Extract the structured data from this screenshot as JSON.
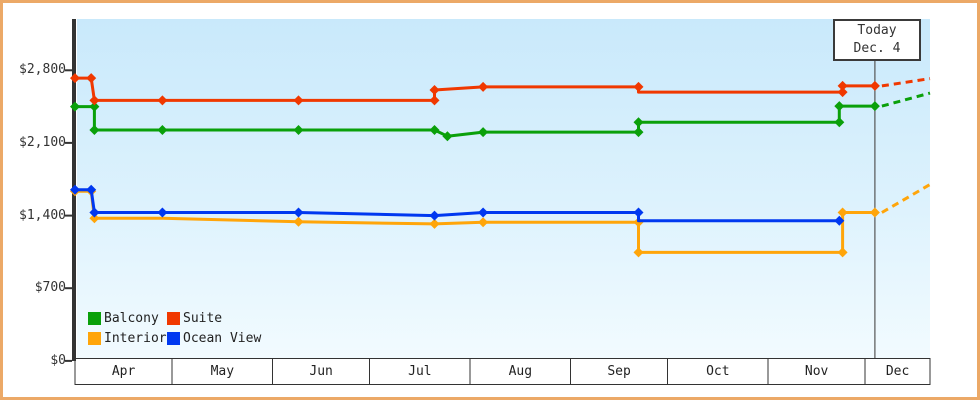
{
  "window": {
    "border_color": "#eca967",
    "background": "#ffffff"
  },
  "today_marker": {
    "line1": "Today",
    "line2": "Dec. 4",
    "day": 247
  },
  "y_axis": {
    "ticks": [
      {
        "label": "$2,800",
        "value": 2800
      },
      {
        "label": "$2,100",
        "value": 2100
      },
      {
        "label": "$1,400",
        "value": 1400
      },
      {
        "label": "$700",
        "value": 700
      },
      {
        "label": "$0",
        "value": 0
      }
    ]
  },
  "x_axis": {
    "months": [
      {
        "label": "Apr",
        "start_day": 0
      },
      {
        "label": "May",
        "start_day": 30
      },
      {
        "label": "Jun",
        "start_day": 61
      },
      {
        "label": "Jul",
        "start_day": 91
      },
      {
        "label": "Aug",
        "start_day": 122
      },
      {
        "label": "Sep",
        "start_day": 153
      },
      {
        "label": "Oct",
        "start_day": 183
      },
      {
        "label": "Nov",
        "start_day": 214
      },
      {
        "label": "Dec",
        "start_day": 244
      }
    ],
    "end_day": 264
  },
  "legend": {
    "items": [
      {
        "label": "Balcony",
        "color": "#0aa00a"
      },
      {
        "label": "Suite",
        "color": "#f03800"
      },
      {
        "label": "Interior",
        "color": "#ffa50a"
      },
      {
        "label": "Ocean View",
        "color": "#0038f0"
      }
    ]
  },
  "chart_data": {
    "type": "line",
    "x_unit": "days from Apr 1",
    "ylim": [
      0,
      3300
    ],
    "today": {
      "day": 247,
      "label": "Dec. 4"
    },
    "legend_position": "bottom-left",
    "grid": false,
    "series": [
      {
        "name": "Suite",
        "color": "#f03800",
        "points": [
          {
            "day": 0,
            "date": "Apr 1",
            "value": 2725
          },
          {
            "day": 5,
            "date": "Apr 6",
            "value": 2725
          },
          {
            "day": 6,
            "date": "Apr 7",
            "value": 2510
          },
          {
            "day": 27,
            "date": "Apr 28",
            "value": 2510
          },
          {
            "day": 69,
            "date": "Jun 9",
            "value": 2510
          },
          {
            "day": 111,
            "date": "Jul 21",
            "value": 2510
          },
          {
            "day": 111,
            "date": "Jul 21",
            "value": 2610
          },
          {
            "day": 126,
            "date": "Aug 5",
            "value": 2640
          },
          {
            "day": 174,
            "date": "Sep 22",
            "value": 2640
          },
          {
            "day": 174,
            "date": "Sep 22",
            "value": 2590,
            "marker": false
          },
          {
            "day": 237,
            "date": "Nov 24",
            "value": 2590
          },
          {
            "day": 237,
            "date": "Nov 24",
            "value": 2650
          },
          {
            "day": 247,
            "date": "Dec 4",
            "value": 2650
          }
        ],
        "forecast": [
          {
            "day": 247,
            "date": "Dec 4",
            "value": 2650
          },
          {
            "day": 264,
            "date": "Dec 21",
            "value": 2720
          }
        ]
      },
      {
        "name": "Balcony",
        "color": "#0aa00a",
        "points": [
          {
            "day": 0,
            "date": "Apr 1",
            "value": 2450
          },
          {
            "day": 6,
            "date": "Apr 7",
            "value": 2450
          },
          {
            "day": 6,
            "date": "Apr 7",
            "value": 2225
          },
          {
            "day": 27,
            "date": "Apr 28",
            "value": 2225
          },
          {
            "day": 69,
            "date": "Jun 9",
            "value": 2225
          },
          {
            "day": 111,
            "date": "Jul 21",
            "value": 2225
          },
          {
            "day": 115,
            "date": "Jul 25",
            "value": 2165
          },
          {
            "day": 126,
            "date": "Aug 5",
            "value": 2205
          },
          {
            "day": 174,
            "date": "Sep 22",
            "value": 2205
          },
          {
            "day": 174,
            "date": "Sep 22",
            "value": 2300
          },
          {
            "day": 236,
            "date": "Nov 23",
            "value": 2300
          },
          {
            "day": 236,
            "date": "Nov 23",
            "value": 2455
          },
          {
            "day": 247,
            "date": "Dec 4",
            "value": 2455
          }
        ],
        "forecast": [
          {
            "day": 247,
            "date": "Dec 4",
            "value": 2455
          },
          {
            "day": 264,
            "date": "Dec 21",
            "value": 2580
          }
        ]
      },
      {
        "name": "Interior",
        "color": "#ffa50a",
        "points": [
          {
            "day": 0,
            "date": "Apr 1",
            "value": 1635
          },
          {
            "day": 5,
            "date": "Apr 6",
            "value": 1635
          },
          {
            "day": 6,
            "date": "Apr 7",
            "value": 1375
          },
          {
            "day": 27,
            "date": "Apr 28",
            "value": 1375,
            "marker": false
          },
          {
            "day": 69,
            "date": "Jun 9",
            "value": 1340
          },
          {
            "day": 111,
            "date": "Jul 21",
            "value": 1320
          },
          {
            "day": 126,
            "date": "Aug 5",
            "value": 1335
          },
          {
            "day": 174,
            "date": "Sep 22",
            "value": 1335
          },
          {
            "day": 174,
            "date": "Sep 22",
            "value": 1045
          },
          {
            "day": 237,
            "date": "Nov 24",
            "value": 1045
          },
          {
            "day": 237,
            "date": "Nov 24",
            "value": 1430
          },
          {
            "day": 247,
            "date": "Dec 4",
            "value": 1430
          }
        ],
        "forecast": [
          {
            "day": 247,
            "date": "Dec 4",
            "value": 1430
          },
          {
            "day": 264,
            "date": "Dec 21",
            "value": 1700
          }
        ]
      },
      {
        "name": "Ocean View",
        "color": "#0038f0",
        "points": [
          {
            "day": 0,
            "date": "Apr 1",
            "value": 1650
          },
          {
            "day": 5,
            "date": "Apr 6",
            "value": 1650
          },
          {
            "day": 6,
            "date": "Apr 7",
            "value": 1430
          },
          {
            "day": 27,
            "date": "Apr 28",
            "value": 1430
          },
          {
            "day": 69,
            "date": "Jun 9",
            "value": 1430
          },
          {
            "day": 111,
            "date": "Jul 21",
            "value": 1400
          },
          {
            "day": 126,
            "date": "Aug 5",
            "value": 1430
          },
          {
            "day": 174,
            "date": "Sep 22",
            "value": 1430
          },
          {
            "day": 174,
            "date": "Sep 22",
            "value": 1350,
            "marker": false
          },
          {
            "day": 236,
            "date": "Nov 23",
            "value": 1350
          }
        ]
      }
    ]
  }
}
